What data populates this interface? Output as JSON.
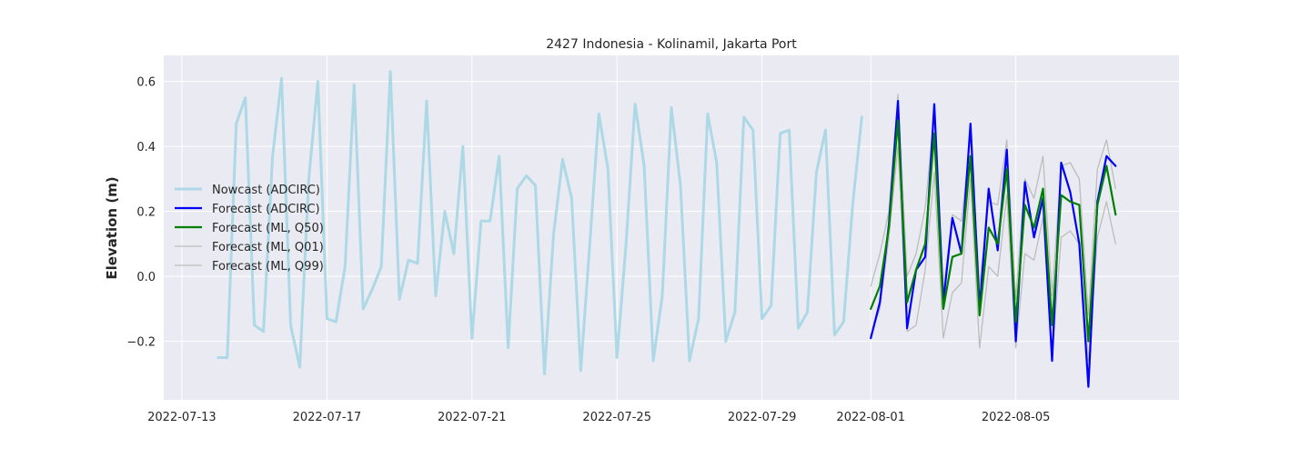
{
  "chart_data": {
    "type": "line",
    "title": "2427 Indonesia - Kolinamil, Jakarta Port",
    "xlabel": "",
    "ylabel": "Elevation (m)",
    "xlim": [
      "2022-07-12T12:00",
      "2022-08-09T12:00"
    ],
    "ylim": [
      -0.38,
      0.68
    ],
    "x_ticks": [
      "2022-07-13",
      "2022-07-17",
      "2022-07-21",
      "2022-07-25",
      "2022-07-29",
      "2022-08-01",
      "2022-08-05"
    ],
    "y_ticks": [
      -0.2,
      0.0,
      0.2,
      0.4,
      0.6
    ],
    "y_tick_labels": [
      "−0.2",
      "0.0",
      "0.2",
      "0.4",
      "0.6"
    ],
    "grid": true,
    "legend_position": "center-left",
    "background": "#eaeaf2",
    "series": [
      {
        "name": "Nowcast (ADCIRC)",
        "color": "#add8e6",
        "width": 3,
        "x": [
          "2022-07-14T00:00",
          "2022-07-14T06:00",
          "2022-07-14T12:00",
          "2022-07-14T18:00",
          "2022-07-15T00:00",
          "2022-07-15T06:00",
          "2022-07-15T12:00",
          "2022-07-15T18:00",
          "2022-07-16T00:00",
          "2022-07-16T06:00",
          "2022-07-16T12:00",
          "2022-07-16T18:00",
          "2022-07-17T00:00",
          "2022-07-17T06:00",
          "2022-07-17T12:00",
          "2022-07-17T18:00",
          "2022-07-18T00:00",
          "2022-07-18T06:00",
          "2022-07-18T12:00",
          "2022-07-18T18:00",
          "2022-07-19T00:00",
          "2022-07-19T06:00",
          "2022-07-19T12:00",
          "2022-07-19T18:00",
          "2022-07-20T00:00",
          "2022-07-20T06:00",
          "2022-07-20T12:00",
          "2022-07-20T18:00",
          "2022-07-21T00:00",
          "2022-07-21T06:00",
          "2022-07-21T12:00",
          "2022-07-21T18:00",
          "2022-07-22T00:00",
          "2022-07-22T06:00",
          "2022-07-22T12:00",
          "2022-07-22T18:00",
          "2022-07-23T00:00",
          "2022-07-23T06:00",
          "2022-07-23T12:00",
          "2022-07-23T18:00",
          "2022-07-24T00:00",
          "2022-07-24T06:00",
          "2022-07-24T12:00",
          "2022-07-24T18:00",
          "2022-07-25T00:00",
          "2022-07-25T06:00",
          "2022-07-25T12:00",
          "2022-07-25T18:00",
          "2022-07-26T00:00",
          "2022-07-26T06:00",
          "2022-07-26T12:00",
          "2022-07-26T18:00",
          "2022-07-27T00:00",
          "2022-07-27T06:00",
          "2022-07-27T12:00",
          "2022-07-27T18:00",
          "2022-07-28T00:00",
          "2022-07-28T06:00",
          "2022-07-28T12:00",
          "2022-07-28T18:00",
          "2022-07-29T00:00",
          "2022-07-29T06:00",
          "2022-07-29T12:00",
          "2022-07-29T18:00",
          "2022-07-30T00:00",
          "2022-07-30T06:00",
          "2022-07-30T12:00",
          "2022-07-30T18:00",
          "2022-07-31T00:00",
          "2022-07-31T06:00",
          "2022-07-31T12:00",
          "2022-07-31T18:00"
        ],
        "y": [
          -0.25,
          -0.25,
          0.47,
          0.55,
          -0.15,
          -0.17,
          0.37,
          0.61,
          -0.15,
          -0.28,
          0.3,
          0.6,
          -0.13,
          -0.14,
          0.03,
          0.59,
          -0.1,
          -0.04,
          0.03,
          0.63,
          -0.07,
          0.05,
          0.04,
          0.54,
          -0.06,
          0.2,
          0.07,
          0.4,
          -0.19,
          0.17,
          0.17,
          0.37,
          -0.22,
          0.27,
          0.31,
          0.28,
          -0.3,
          0.13,
          0.36,
          0.24,
          -0.29,
          0.1,
          0.5,
          0.33,
          -0.25,
          0.1,
          0.53,
          0.34,
          -0.26,
          -0.06,
          0.52,
          0.28,
          -0.26,
          -0.13,
          0.5,
          0.35,
          -0.2,
          -0.11,
          0.49,
          0.45,
          -0.13,
          -0.09,
          0.44,
          0.45,
          -0.16,
          -0.11,
          0.32,
          0.45,
          -0.18,
          -0.14,
          0.22,
          0.49
        ]
      },
      {
        "name": "Forecast (ADCIRC)",
        "color": "#0000ff",
        "width": 2.2,
        "x": [
          "2022-08-01T00:00",
          "2022-08-01T06:00",
          "2022-08-01T12:00",
          "2022-08-01T18:00",
          "2022-08-02T00:00",
          "2022-08-02T06:00",
          "2022-08-02T12:00",
          "2022-08-02T18:00",
          "2022-08-03T00:00",
          "2022-08-03T06:00",
          "2022-08-03T12:00",
          "2022-08-03T18:00",
          "2022-08-04T00:00",
          "2022-08-04T06:00",
          "2022-08-04T12:00",
          "2022-08-04T18:00",
          "2022-08-05T00:00",
          "2022-08-05T06:00",
          "2022-08-05T12:00",
          "2022-08-05T18:00",
          "2022-08-06T00:00",
          "2022-08-06T06:00",
          "2022-08-06T12:00",
          "2022-08-06T18:00",
          "2022-08-07T00:00",
          "2022-08-07T06:00",
          "2022-08-07T12:00",
          "2022-08-07T18:00"
        ],
        "y": [
          -0.19,
          -0.08,
          0.16,
          0.54,
          -0.16,
          0.02,
          0.06,
          0.53,
          -0.08,
          0.18,
          0.07,
          0.47,
          -0.1,
          0.27,
          0.08,
          0.39,
          -0.2,
          0.29,
          0.12,
          0.24,
          -0.26,
          0.35,
          0.26,
          0.1,
          -0.34,
          0.23,
          0.37,
          0.34
        ]
      },
      {
        "name": "Forecast (ML, Q50)",
        "color": "#008000",
        "width": 2.2,
        "x": [
          "2022-08-01T00:00",
          "2022-08-01T06:00",
          "2022-08-01T12:00",
          "2022-08-01T18:00",
          "2022-08-02T00:00",
          "2022-08-02T06:00",
          "2022-08-02T12:00",
          "2022-08-02T18:00",
          "2022-08-03T00:00",
          "2022-08-03T06:00",
          "2022-08-03T12:00",
          "2022-08-03T18:00",
          "2022-08-04T00:00",
          "2022-08-04T06:00",
          "2022-08-04T12:00",
          "2022-08-04T18:00",
          "2022-08-05T00:00",
          "2022-08-05T06:00",
          "2022-08-05T12:00",
          "2022-08-05T18:00",
          "2022-08-06T00:00",
          "2022-08-06T06:00",
          "2022-08-06T12:00",
          "2022-08-06T18:00",
          "2022-08-07T00:00",
          "2022-08-07T06:00",
          "2022-08-07T12:00",
          "2022-08-07T18:00"
        ],
        "y": [
          -0.1,
          -0.03,
          0.15,
          0.48,
          -0.08,
          0.02,
          0.1,
          0.44,
          -0.1,
          0.06,
          0.07,
          0.37,
          -0.12,
          0.15,
          0.1,
          0.33,
          -0.14,
          0.22,
          0.15,
          0.27,
          -0.15,
          0.25,
          0.23,
          0.22,
          -0.2,
          0.22,
          0.34,
          0.19
        ]
      },
      {
        "name": "Forecast (ML, Q01)",
        "color": "#bdbdbd",
        "width": 1.3,
        "x": [
          "2022-08-01T00:00",
          "2022-08-01T06:00",
          "2022-08-01T12:00",
          "2022-08-01T18:00",
          "2022-08-02T00:00",
          "2022-08-02T06:00",
          "2022-08-02T12:00",
          "2022-08-02T18:00",
          "2022-08-03T00:00",
          "2022-08-03T06:00",
          "2022-08-03T12:00",
          "2022-08-03T18:00",
          "2022-08-04T00:00",
          "2022-08-04T06:00",
          "2022-08-04T12:00",
          "2022-08-04T18:00",
          "2022-08-05T00:00",
          "2022-08-05T06:00",
          "2022-08-05T12:00",
          "2022-08-05T18:00",
          "2022-08-06T00:00",
          "2022-08-06T06:00",
          "2022-08-06T12:00",
          "2022-08-06T18:00",
          "2022-08-07T00:00",
          "2022-08-07T06:00",
          "2022-08-07T12:00",
          "2022-08-07T18:00"
        ],
        "y": [
          -0.18,
          -0.1,
          0.12,
          0.4,
          -0.17,
          -0.15,
          0.02,
          0.32,
          -0.19,
          -0.05,
          -0.02,
          0.3,
          -0.22,
          0.03,
          0.0,
          0.25,
          -0.22,
          0.07,
          0.05,
          0.18,
          -0.25,
          0.12,
          0.14,
          0.1,
          -0.26,
          0.12,
          0.23,
          0.1
        ]
      },
      {
        "name": "Forecast (ML, Q99)",
        "color": "#bdbdbd",
        "width": 1.3,
        "x": [
          "2022-08-01T00:00",
          "2022-08-01T06:00",
          "2022-08-01T12:00",
          "2022-08-01T18:00",
          "2022-08-02T00:00",
          "2022-08-02T06:00",
          "2022-08-02T12:00",
          "2022-08-02T18:00",
          "2022-08-03T00:00",
          "2022-08-03T06:00",
          "2022-08-03T12:00",
          "2022-08-03T18:00",
          "2022-08-04T00:00",
          "2022-08-04T06:00",
          "2022-08-04T12:00",
          "2022-08-04T18:00",
          "2022-08-05T00:00",
          "2022-08-05T06:00",
          "2022-08-05T12:00",
          "2022-08-05T18:00",
          "2022-08-06T00:00",
          "2022-08-06T06:00",
          "2022-08-06T12:00",
          "2022-08-06T18:00",
          "2022-08-07T00:00",
          "2022-08-07T06:00",
          "2022-08-07T12:00",
          "2022-08-07T18:00"
        ],
        "y": [
          -0.03,
          0.07,
          0.2,
          0.56,
          0.0,
          0.07,
          0.21,
          0.5,
          -0.05,
          0.19,
          0.17,
          0.43,
          -0.03,
          0.23,
          0.22,
          0.42,
          -0.07,
          0.3,
          0.24,
          0.37,
          -0.06,
          0.34,
          0.35,
          0.3,
          -0.12,
          0.33,
          0.42,
          0.27
        ]
      }
    ]
  }
}
